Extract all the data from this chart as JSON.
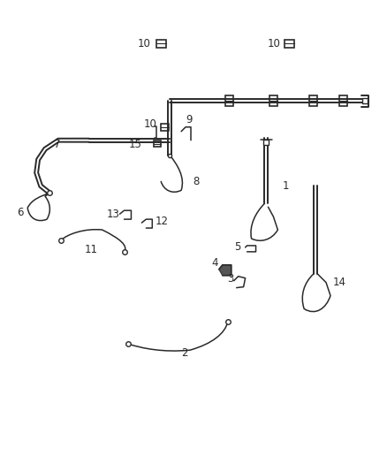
{
  "bg_color": "#ffffff",
  "line_color": "#2a2a2a",
  "figsize": [
    4.38,
    5.33
  ],
  "dpi": 100,
  "lw_double": 1.4,
  "lw_single": 1.1,
  "font_size": 8.5
}
